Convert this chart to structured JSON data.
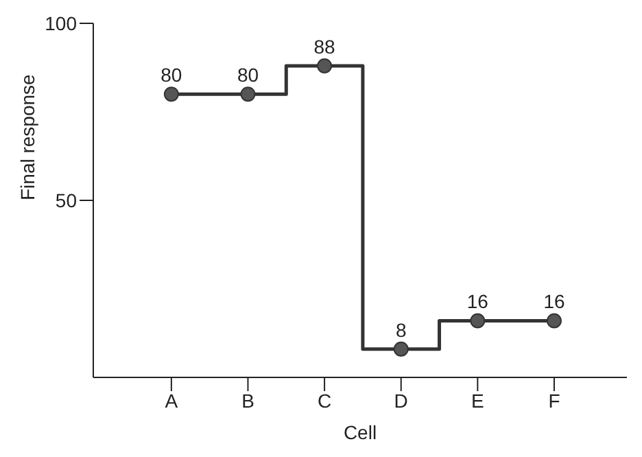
{
  "chart_data": {
    "type": "step",
    "xlabel": "Cell",
    "ylabel": "Final response",
    "categories": [
      "A",
      "B",
      "C",
      "D",
      "E",
      "F"
    ],
    "series": [
      {
        "color": "#333333",
        "values": [
          80,
          80,
          88,
          8,
          16,
          16
        ]
      }
    ],
    "ylim": [
      0,
      100
    ],
    "yticks": [
      50,
      100
    ],
    "marker": "circle",
    "line_style": "solid",
    "data_labels": true
  }
}
